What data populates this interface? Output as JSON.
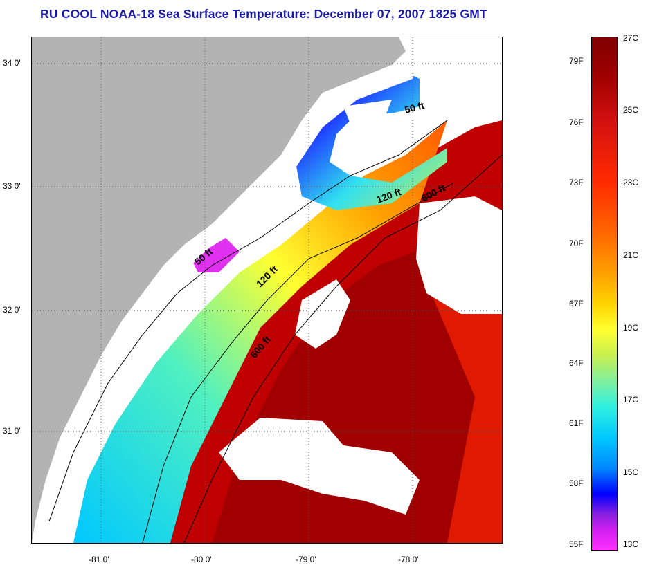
{
  "title": "RU COOL  NOAA-18  Sea Surface Temperature:  December 07, 2007 1825 GMT",
  "map": {
    "lat_labels": [
      "34 0'",
      "33 0'",
      "32 0'",
      "31 0'"
    ],
    "lon_labels": [
      "-81 0'",
      "-80 0'",
      "-79 0'",
      "-78 0'"
    ],
    "depth_contours": [
      "50 ft",
      "120 ft",
      "600 ft",
      "50 ft",
      "120 ft",
      "600 ft"
    ]
  },
  "colorbar": {
    "fahrenheit_labels": [
      "79F",
      "76F",
      "73F",
      "70F",
      "67F",
      "64F",
      "61F",
      "58F",
      "55F"
    ],
    "celsius_labels": [
      "27C",
      "25C",
      "23C",
      "21C",
      "19C",
      "17C",
      "15C",
      "13C"
    ]
  },
  "colors": {
    "title": "#1a1aa8",
    "land": "#b3b3b3",
    "cloud_mask": "#ffffff",
    "warm_max": "#800000",
    "cold_min": "#ff30ff"
  }
}
